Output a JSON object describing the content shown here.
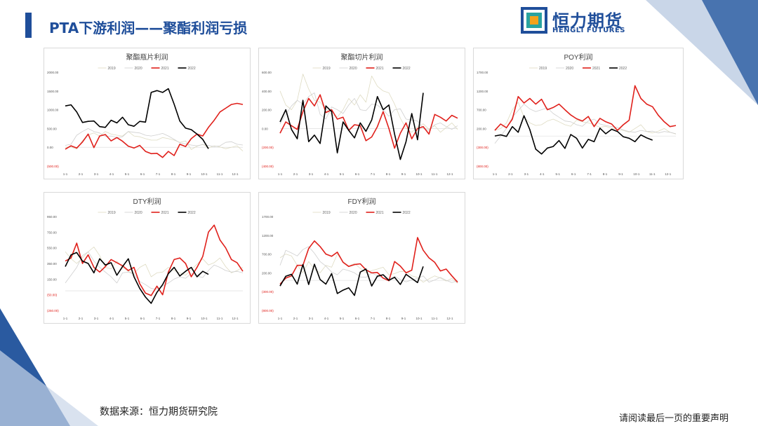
{
  "slide": {
    "title": "PTA下游利润——聚酯利润亏损",
    "source": "数据来源：恒力期货研究院",
    "disclaimer": "请阅读最后一页的重要声明"
  },
  "logo": {
    "name_cn": "恒力期货",
    "name_en": "HENGLI FUTURES"
  },
  "colors": {
    "brand": "#1f4e9a",
    "s2019": "#dedbc2",
    "s2020": "#cfcfcf",
    "s2021": "#e0201b",
    "s2022": "#000000"
  },
  "chart_data": [
    {
      "type": "line",
      "title": "聚酯瓶片利润",
      "legend": [
        "2019",
        "2020",
        "2021",
        "2022"
      ],
      "x_ticks": [
        "1-1",
        "2-1",
        "3-1",
        "4-1",
        "5-1",
        "6-1",
        "7-1",
        "8-1",
        "9-1",
        "10-1",
        "11-1",
        "12-1"
      ],
      "y_ticks": [
        "2000.00",
        "1500.00",
        "1000.00",
        "500.00",
        "0.00",
        "(500.00)"
      ],
      "ylim": [
        -500,
        2000
      ],
      "series": [
        {
          "name": "2019",
          "values": [
            0,
            10,
            -50,
            180,
            330,
            380,
            300,
            420,
            350,
            320,
            300,
            420,
            300,
            280,
            230,
            190,
            190,
            260,
            230,
            190,
            130,
            170,
            -60,
            30,
            80,
            -20,
            40,
            10,
            -40,
            0,
            40,
            -100
          ]
        },
        {
          "name": "2020",
          "values": [
            50,
            80,
            320,
            420,
            500,
            420,
            380,
            290,
            300,
            260,
            280,
            420,
            400,
            380,
            320,
            300,
            330,
            370,
            300,
            210,
            120,
            90,
            60,
            40,
            70,
            50,
            20,
            40,
            130,
            150,
            80,
            60
          ]
        },
        {
          "name": "2021",
          "values": [
            -50,
            40,
            -20,
            140,
            350,
            -10,
            300,
            340,
            170,
            260,
            160,
            30,
            -20,
            50,
            -110,
            -170,
            -160,
            -270,
            -110,
            -220,
            80,
            20,
            230,
            350,
            300,
            530,
            720,
            940,
            1040,
            1140,
            1170,
            1140
          ]
        },
        {
          "name": "2022",
          "values": [
            1100,
            1130,
            940,
            660,
            690,
            700,
            550,
            530,
            720,
            650,
            800,
            600,
            560,
            690,
            670,
            1460,
            1510,
            1460,
            1560,
            1150,
            700,
            510,
            470,
            350,
            210,
            -40
          ]
        }
      ]
    },
    {
      "type": "line",
      "title": "聚酯切片利润",
      "legend": [
        "2019",
        "2020",
        "2021",
        "2022"
      ],
      "x_ticks": [
        "1-1",
        "2-1",
        "3-1",
        "4-1",
        "5-1",
        "6-1",
        "7-1",
        "8-1",
        "9-1",
        "10-1",
        "11-1",
        "12-1"
      ],
      "y_ticks": [
        "600.00",
        "400.00",
        "200.00",
        "0.00",
        "(200.00)",
        "(400.00)"
      ],
      "ylim": [
        -400,
        600
      ],
      "series": [
        {
          "name": "2019",
          "values": [
            400,
            250,
            200,
            300,
            580,
            420,
            300,
            280,
            210,
            150,
            120,
            200,
            320,
            250,
            360,
            280,
            560,
            450,
            400,
            380,
            260,
            110,
            0,
            -40,
            20,
            50,
            -10,
            30,
            -40,
            10,
            60,
            -10
          ]
        },
        {
          "name": "2020",
          "values": [
            50,
            150,
            240,
            300,
            260,
            340,
            380,
            150,
            100,
            230,
            200,
            160,
            250,
            320,
            200,
            190,
            260,
            250,
            200,
            130,
            200,
            210,
            100,
            90,
            80,
            0,
            -20,
            40,
            60,
            20,
            -10,
            30
          ]
        },
        {
          "name": "2021",
          "values": [
            -50,
            70,
            30,
            -10,
            180,
            320,
            240,
            360,
            170,
            200,
            100,
            120,
            -20,
            40,
            30,
            -130,
            -90,
            20,
            180,
            0,
            -210,
            -50,
            60,
            -110,
            0,
            20,
            -60,
            150,
            120,
            80,
            140,
            110
          ]
        },
        {
          "name": "2022",
          "values": [
            70,
            200,
            -10,
            -110,
            300,
            -140,
            -70,
            -160,
            240,
            180,
            -260,
            70,
            -20,
            -100,
            60,
            -30,
            90,
            340,
            200,
            250,
            -60,
            -330,
            -140,
            160,
            -120,
            380
          ]
        }
      ]
    },
    {
      "type": "line",
      "title": "POY利润",
      "legend": [
        "2019",
        "2020",
        "2021",
        "2022"
      ],
      "x_ticks": [
        "1-1",
        "2-1",
        "3-1",
        "4-1",
        "5-1",
        "6-1",
        "7-1",
        "8-1",
        "9-1",
        "10-1",
        "11-1",
        "12-1"
      ],
      "y_ticks": [
        "1700.00",
        "1200.00",
        "700.00",
        "200.00",
        "(300.00)",
        "(800.00)"
      ],
      "ylim": [
        -800,
        1700
      ],
      "series": [
        {
          "name": "2019",
          "values": [
            150,
            200,
            350,
            700,
            900,
            500,
            350,
            280,
            300,
            400,
            450,
            380,
            300,
            260,
            420,
            380,
            350,
            300,
            230,
            260,
            200,
            180,
            150,
            100,
            200,
            300,
            120,
            80,
            130,
            200,
            100,
            50
          ]
        },
        {
          "name": "2020",
          "values": [
            -200,
            0,
            200,
            500,
            680,
            850,
            720,
            650,
            700,
            750,
            600,
            500,
            400,
            380,
            300,
            260,
            400,
            450,
            320,
            280,
            250,
            230,
            160,
            120,
            100,
            150,
            120,
            130,
            80,
            120,
            100,
            60
          ]
        },
        {
          "name": "2021",
          "values": [
            150,
            320,
            220,
            450,
            1050,
            880,
            1000,
            850,
            980,
            700,
            760,
            850,
            700,
            560,
            460,
            400,
            520,
            250,
            470,
            380,
            320,
            150,
            300,
            420,
            1340,
            1000,
            850,
            780,
            550,
            380,
            250,
            280
          ]
        },
        {
          "name": "2022",
          "values": [
            0,
            30,
            -10,
            250,
            100,
            540,
            170,
            -350,
            -480,
            -320,
            -280,
            -120,
            -330,
            40,
            -60,
            -320,
            -90,
            -150,
            210,
            60,
            180,
            120,
            -20,
            -60,
            -150,
            30,
            -50,
            -110
          ]
        }
      ]
    },
    {
      "type": "line",
      "title": "DTY利润",
      "legend": [
        "2019",
        "2020",
        "2021",
        "2022"
      ],
      "x_ticks": [
        "1-1",
        "2-1",
        "3-1",
        "4-1",
        "5-1",
        "6-1",
        "7-1",
        "8-1",
        "9-1",
        "10-1",
        "11-1",
        "12-1"
      ],
      "y_ticks": [
        "950.00",
        "750.00",
        "550.00",
        "350.00",
        "150.00",
        "(50.00)",
        "(250.00)"
      ],
      "ylim": [
        -250,
        950
      ],
      "series": [
        {
          "name": "2019",
          "values": [
            500,
            410,
            350,
            420,
            500,
            560,
            450,
            300,
            280,
            380,
            300,
            250,
            220,
            300,
            340,
            180,
            230,
            240,
            300,
            260,
            230,
            200,
            270,
            340,
            410,
            330,
            360,
            420,
            310,
            230,
            260,
            300
          ]
        },
        {
          "name": "2020",
          "values": [
            100,
            200,
            300,
            450,
            500,
            380,
            300,
            240,
            180,
            100,
            230,
            240,
            210,
            120,
            80,
            30,
            20,
            60,
            100,
            150,
            180,
            160,
            220,
            190,
            170,
            260,
            330,
            300,
            260,
            240,
            250,
            230
          ]
        },
        {
          "name": "2021",
          "values": [
            380,
            420,
            610,
            350,
            460,
            300,
            240,
            310,
            400,
            360,
            320,
            260,
            300,
            90,
            -30,
            -60,
            60,
            -50,
            240,
            400,
            420,
            350,
            180,
            300,
            440,
            750,
            840,
            650,
            550,
            400,
            360,
            250
          ]
        },
        {
          "name": "2022",
          "values": [
            310,
            460,
            490,
            380,
            350,
            230,
            410,
            330,
            360,
            200,
            310,
            410,
            180,
            30,
            -80,
            -160,
            -20,
            80,
            220,
            300,
            190,
            250,
            300,
            180,
            250,
            210
          ]
        }
      ]
    },
    {
      "type": "line",
      "title": "FDY利润",
      "legend": [
        "2019",
        "2020",
        "2021",
        "2022"
      ],
      "x_ticks": [
        "1-1",
        "2-1",
        "3-1",
        "4-1",
        "5-1",
        "6-1",
        "7-1",
        "8-1",
        "9-1",
        "10-1",
        "11-1",
        "12-1"
      ],
      "y_ticks": [
        "1700.00",
        "1200.00",
        "700.00",
        "200.00",
        "(300.00)",
        "(800.00)"
      ],
      "ylim": [
        -800,
        1700
      ],
      "series": [
        {
          "name": "2019",
          "values": [
            600,
            700,
            650,
            400,
            200,
            500,
            300,
            200,
            400,
            350,
            700,
            500,
            380,
            450,
            320,
            200,
            260,
            300,
            350,
            150,
            180,
            240,
            230,
            120,
            80,
            -50,
            40,
            120,
            60,
            -20,
            50,
            -80
          ]
        },
        {
          "name": "2020",
          "values": [
            400,
            800,
            730,
            650,
            820,
            900,
            720,
            500,
            380,
            220,
            150,
            300,
            260,
            200,
            90,
            80,
            200,
            120,
            70,
            30,
            110,
            20,
            -40,
            10,
            50,
            120,
            -50,
            10,
            80,
            0,
            -60,
            -10
          ]
        },
        {
          "name": "2021",
          "values": [
            -100,
            60,
            120,
            400,
            400,
            850,
            1050,
            900,
            700,
            640,
            750,
            480,
            370,
            420,
            440,
            280,
            200,
            210,
            60,
            -10,
            500,
            380,
            200,
            270,
            1140,
            800,
            600,
            480,
            250,
            300,
            120,
            -50
          ]
        },
        {
          "name": "2022",
          "values": [
            -150,
            110,
            160,
            -100,
            420,
            -110,
            430,
            20,
            -100,
            180,
            -350,
            -260,
            -200,
            -400,
            220,
            300,
            -150,
            110,
            150,
            0,
            80,
            -110,
            160,
            50,
            -60,
            370
          ]
        }
      ]
    }
  ]
}
